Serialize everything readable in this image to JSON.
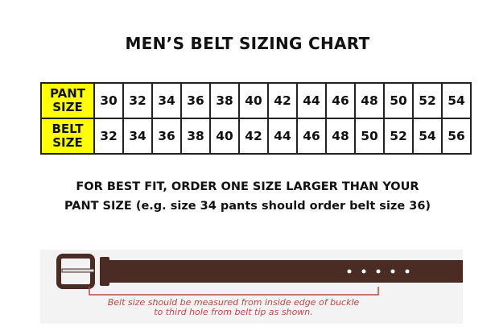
{
  "title": "MEN’S BELT SIZING CHART",
  "table": {
    "row_headers": [
      [
        "PANT",
        "SIZE"
      ],
      [
        "BELT",
        "SIZE"
      ]
    ],
    "pant_sizes": [
      "30",
      "32",
      "34",
      "36",
      "38",
      "40",
      "42",
      "44",
      "46",
      "48",
      "50",
      "52",
      "54"
    ],
    "belt_sizes": [
      "32",
      "34",
      "36",
      "38",
      "40",
      "42",
      "44",
      "46",
      "48",
      "50",
      "52",
      "54",
      "56"
    ]
  },
  "note": {
    "line1": "FOR BEST FIT, ORDER ONE SIZE LARGER THAN YOUR",
    "line2": "PANT SIZE (e.g. size 34 pants should order belt size 36)"
  },
  "diagram": {
    "caption_line1": "Belt size should be measured from inside edge of buckle",
    "caption_line2": "to third hole from belt tip as shown.",
    "colors": {
      "header_bg": "#ffff00",
      "belt": "#4a2c25",
      "measure_line": "#b94a48"
    }
  }
}
